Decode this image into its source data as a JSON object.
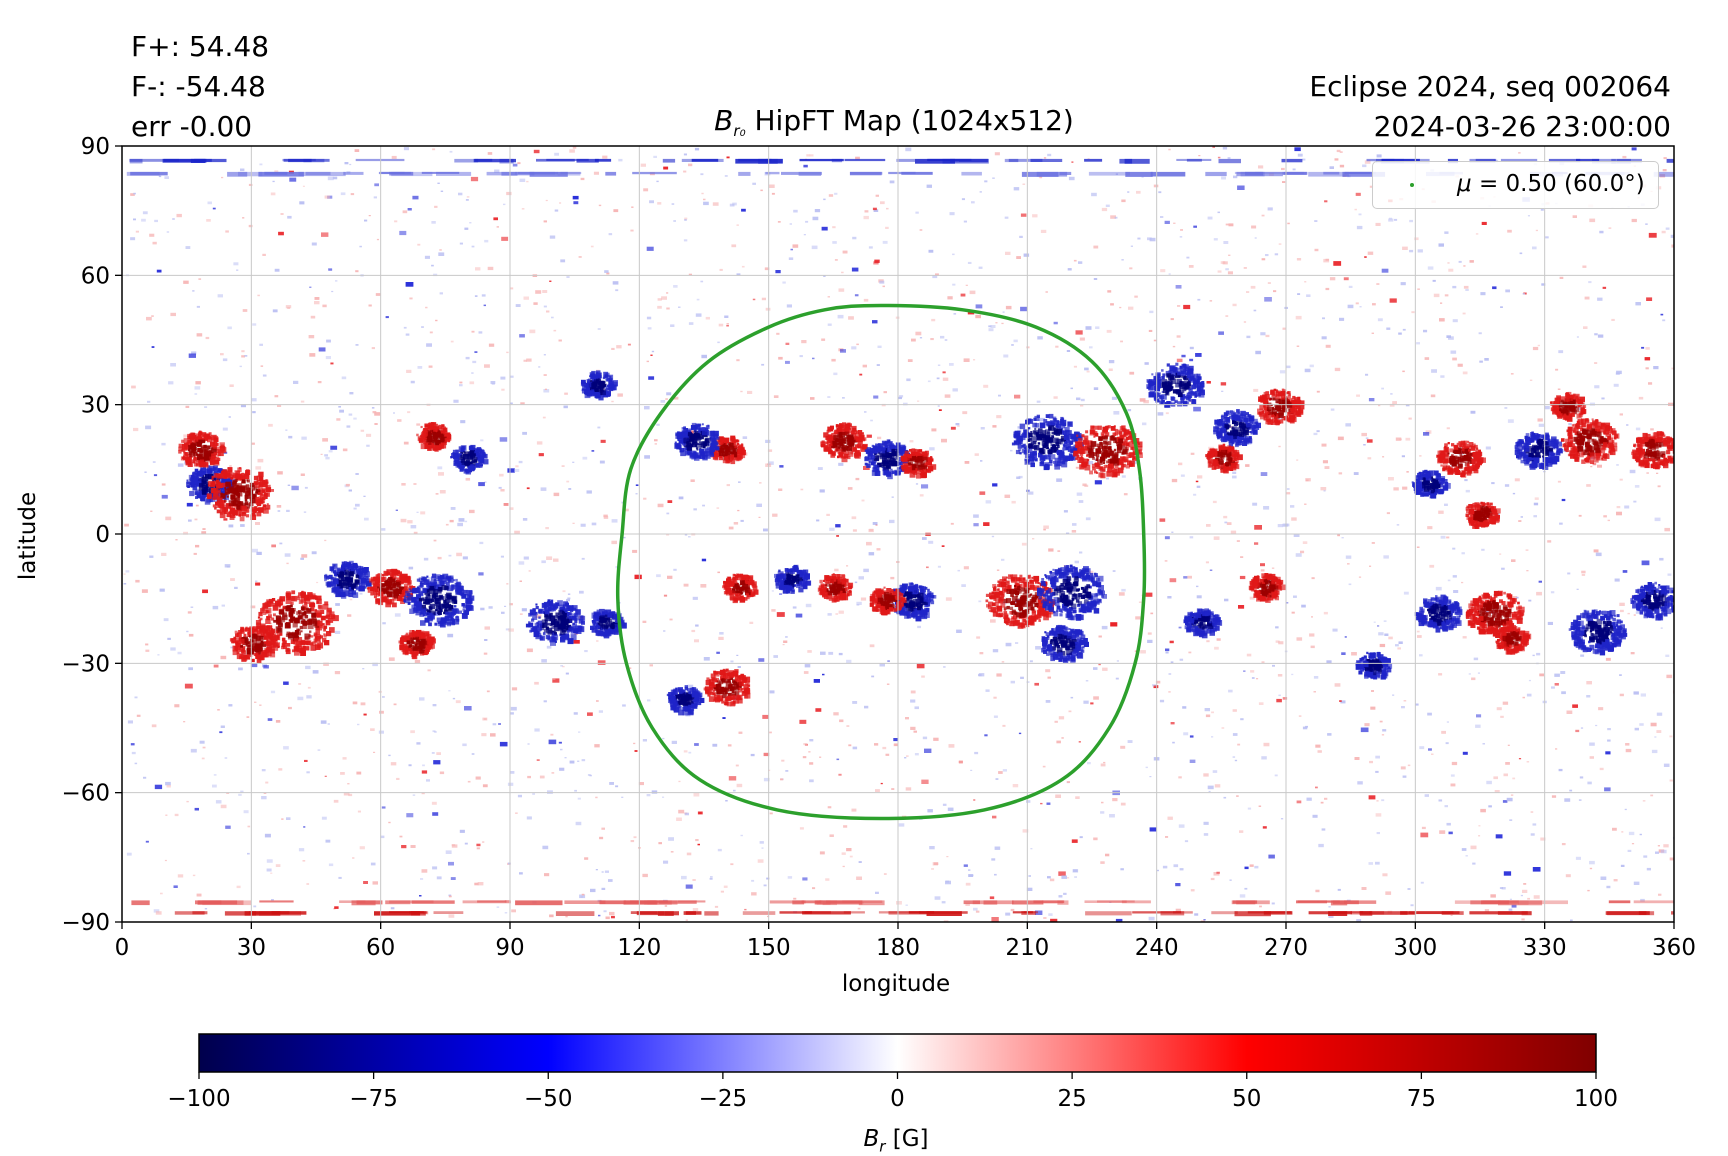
{
  "header": {
    "f_plus": "F+: 54.48",
    "f_minus": "F-: -54.48",
    "err": "err -0.00",
    "eclipse": "Eclipse 2024, seq 002064",
    "datetime": "2024-03-26 23:00:00"
  },
  "colors": {
    "negative": "#00004c",
    "mid_negative": "#0000ff",
    "zero": "#ffffff",
    "mid_positive": "#ff0000",
    "positive": "#800000",
    "contour": "#2ca02c",
    "grid": "#c8c8c8"
  },
  "chart_data": {
    "type": "heatmap",
    "title_var": "B",
    "title_sub": "r₀",
    "title_rest": " HipFT Map (1024x512)",
    "xlabel": "longitude",
    "ylabel": "latitude",
    "xlim": [
      0,
      360
    ],
    "ylim": [
      -90,
      90
    ],
    "xticks": [
      0,
      30,
      60,
      90,
      120,
      150,
      180,
      210,
      240,
      270,
      300,
      330,
      360
    ],
    "yticks": [
      -90,
      -60,
      -30,
      0,
      30,
      60,
      90
    ],
    "grid": true,
    "colormap": "seismic",
    "colorbar": {
      "orientation": "horizontal",
      "range": [
        -100,
        100
      ],
      "ticks": [
        "−100",
        "−75",
        "−50",
        "−25",
        "0",
        "25",
        "50",
        "75",
        "100"
      ],
      "label_var": "B",
      "label_sub": "r",
      "label_unit": " [G]"
    },
    "legend": {
      "mu_symbol": "μ",
      "entry": " = 0.50 (60.0°)",
      "position": "top-right"
    },
    "contour": {
      "name": "mu = 0.50 (60.0°)",
      "points": [
        [
          176,
          53
        ],
        [
          195,
          52
        ],
        [
          212,
          48
        ],
        [
          225,
          40
        ],
        [
          233,
          28
        ],
        [
          236,
          15
        ],
        [
          237,
          0
        ],
        [
          237,
          -15
        ],
        [
          235,
          -30
        ],
        [
          229,
          -45
        ],
        [
          218,
          -57
        ],
        [
          200,
          -64
        ],
        [
          176,
          -66
        ],
        [
          152,
          -64
        ],
        [
          134,
          -57
        ],
        [
          123,
          -45
        ],
        [
          117,
          -30
        ],
        [
          115,
          -15
        ],
        [
          116,
          0
        ],
        [
          118,
          15
        ],
        [
          125,
          28
        ],
        [
          136,
          40
        ],
        [
          150,
          48
        ],
        [
          163,
          52
        ],
        [
          176,
          53
        ]
      ]
    },
    "active_regions": [
      {
        "lon": 140,
        "lat": 20,
        "sign": 1,
        "size": 3
      },
      {
        "lon": 133,
        "lat": 22,
        "sign": -1,
        "size": 4
      },
      {
        "lon": 167,
        "lat": 22,
        "sign": 1,
        "size": 4
      },
      {
        "lon": 177,
        "lat": 18,
        "sign": -1,
        "size": 4
      },
      {
        "lon": 184,
        "lat": 17,
        "sign": 1,
        "size": 3
      },
      {
        "lon": 214,
        "lat": 22,
        "sign": -1,
        "size": 6
      },
      {
        "lon": 228,
        "lat": 20,
        "sign": 1,
        "size": 6
      },
      {
        "lon": 208,
        "lat": -15,
        "sign": 1,
        "size": 6
      },
      {
        "lon": 220,
        "lat": -13,
        "sign": -1,
        "size": 6
      },
      {
        "lon": 183,
        "lat": -15,
        "sign": -1,
        "size": 4
      },
      {
        "lon": 177,
        "lat": -15,
        "sign": 1,
        "size": 3
      },
      {
        "lon": 155,
        "lat": -10,
        "sign": -1,
        "size": 3
      },
      {
        "lon": 143,
        "lat": -12,
        "sign": 1,
        "size": 3
      },
      {
        "lon": 165,
        "lat": -12,
        "sign": 1,
        "size": 3
      },
      {
        "lon": 140,
        "lat": -35,
        "sign": 1,
        "size": 4
      },
      {
        "lon": 130,
        "lat": -38,
        "sign": -1,
        "size": 3
      },
      {
        "lon": 218,
        "lat": -25,
        "sign": -1,
        "size": 4
      },
      {
        "lon": 20,
        "lat": 12,
        "sign": -1,
        "size": 4
      },
      {
        "lon": 27,
        "lat": 10,
        "sign": 1,
        "size": 6
      },
      {
        "lon": 18,
        "lat": 20,
        "sign": 1,
        "size": 4
      },
      {
        "lon": 40,
        "lat": -20,
        "sign": 1,
        "size": 7
      },
      {
        "lon": 30,
        "lat": -25,
        "sign": 1,
        "size": 4
      },
      {
        "lon": 52,
        "lat": -10,
        "sign": -1,
        "size": 4
      },
      {
        "lon": 62,
        "lat": -12,
        "sign": 1,
        "size": 4
      },
      {
        "lon": 73,
        "lat": -15,
        "sign": -1,
        "size": 6
      },
      {
        "lon": 68,
        "lat": -25,
        "sign": 1,
        "size": 3
      },
      {
        "lon": 72,
        "lat": 23,
        "sign": 1,
        "size": 3
      },
      {
        "lon": 80,
        "lat": 18,
        "sign": -1,
        "size": 3
      },
      {
        "lon": 100,
        "lat": -20,
        "sign": -1,
        "size": 5
      },
      {
        "lon": 112,
        "lat": -20,
        "sign": -1,
        "size": 3
      },
      {
        "lon": 110,
        "lat": 35,
        "sign": -1,
        "size": 3
      },
      {
        "lon": 244,
        "lat": 35,
        "sign": -1,
        "size": 5
      },
      {
        "lon": 258,
        "lat": 25,
        "sign": -1,
        "size": 4
      },
      {
        "lon": 255,
        "lat": 18,
        "sign": 1,
        "size": 3
      },
      {
        "lon": 268,
        "lat": 30,
        "sign": 1,
        "size": 4
      },
      {
        "lon": 310,
        "lat": 18,
        "sign": 1,
        "size": 4
      },
      {
        "lon": 303,
        "lat": 12,
        "sign": -1,
        "size": 3
      },
      {
        "lon": 315,
        "lat": 5,
        "sign": 1,
        "size": 3
      },
      {
        "lon": 328,
        "lat": 20,
        "sign": -1,
        "size": 4
      },
      {
        "lon": 340,
        "lat": 22,
        "sign": 1,
        "size": 5
      },
      {
        "lon": 355,
        "lat": 20,
        "sign": 1,
        "size": 4
      },
      {
        "lon": 335,
        "lat": 30,
        "sign": 1,
        "size": 3
      },
      {
        "lon": 305,
        "lat": -18,
        "sign": -1,
        "size": 4
      },
      {
        "lon": 318,
        "lat": -18,
        "sign": 1,
        "size": 5
      },
      {
        "lon": 322,
        "lat": -24,
        "sign": 1,
        "size": 3
      },
      {
        "lon": 342,
        "lat": -22,
        "sign": -1,
        "size": 5
      },
      {
        "lon": 355,
        "lat": -15,
        "sign": -1,
        "size": 4
      },
      {
        "lon": 290,
        "lat": -30,
        "sign": -1,
        "size": 3
      },
      {
        "lon": 250,
        "lat": -20,
        "sign": -1,
        "size": 3
      },
      {
        "lon": 265,
        "lat": -12,
        "sign": 1,
        "size": 3
      }
    ]
  }
}
